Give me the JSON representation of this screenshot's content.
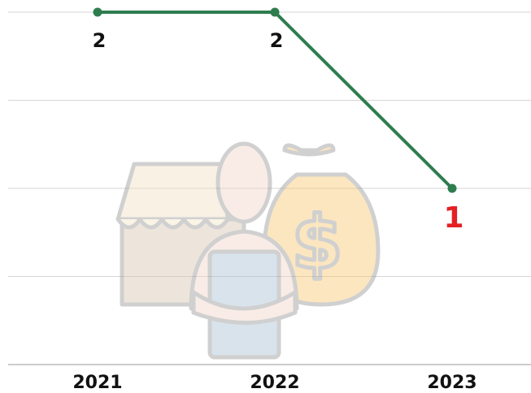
{
  "chart_data": {
    "type": "line",
    "categories": [
      "2021",
      "2022",
      "2023"
    ],
    "values": [
      2,
      2,
      1
    ],
    "color": "#2e7d4f",
    "value_label_colors": [
      "#111111",
      "#111111",
      "#e32124"
    ],
    "ylim": [
      0,
      2
    ],
    "yticks": [
      0,
      0.5,
      1,
      1.5,
      2
    ],
    "grid": true
  }
}
